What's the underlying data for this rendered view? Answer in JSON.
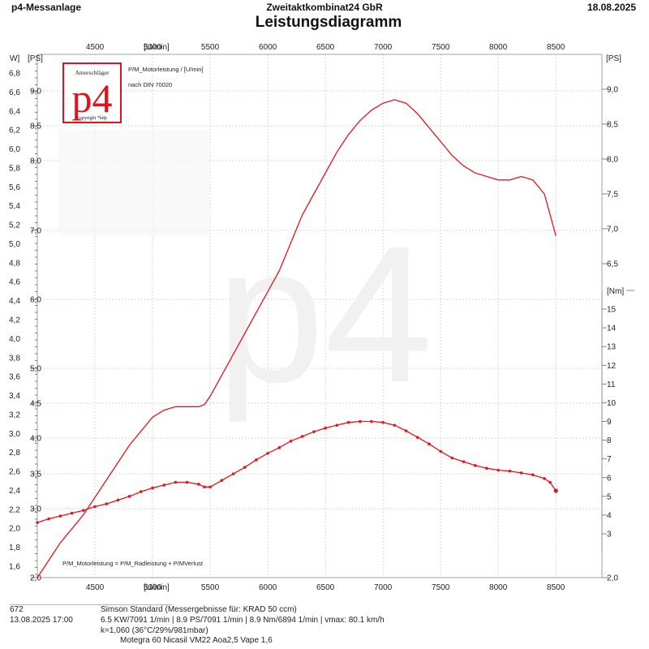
{
  "header": {
    "app_title": "p4-Messanlage",
    "company": "Zweitaktkombinat24 GbR",
    "date": "18.08.2025",
    "title": "Leistungsdiagramm"
  },
  "logo": {
    "top_text": "Amerschläger",
    "mark": "p4",
    "bottom_text": "copyright *bdp"
  },
  "watermark": "p4",
  "annotations": {
    "series_label": "P/M_Motorleistung / [U/min]",
    "norm": "nach DIN 70020",
    "formula": "P/M_Motorleistung = P/M_Radleistung + P/MVerlust"
  },
  "colors": {
    "series": "#e8141c",
    "logo": "#e0141c"
  },
  "chart_data": {
    "type": "line",
    "title": "Leistungsdiagramm",
    "x_unit_label": "[U/min]",
    "x_ticks": [
      "4500",
      "5000",
      "5500",
      "6000",
      "6500",
      "7000",
      "7500",
      "8000",
      "8500"
    ],
    "xlim": [
      4000,
      8900
    ],
    "axes": {
      "kw": {
        "unit_label": "W]",
        "ticks": [
          "1,6",
          "1,8",
          "2,0",
          "2,2",
          "2,4",
          "2,6",
          "2,8",
          "3,0",
          "3,2",
          "3,4",
          "3,6",
          "3,8",
          "4,0",
          "4,2",
          "4,4",
          "4,6",
          "4,8",
          "5,0",
          "5,2",
          "5,4",
          "5,6",
          "5,8",
          "6,0",
          "6,2",
          "6,4",
          "6,6",
          "6,8"
        ],
        "lim": [
          1.6,
          6.8
        ]
      },
      "ps_left": {
        "unit_label": "[PS]",
        "ticks": [
          "2,0",
          "3,0",
          "3,5",
          "4,0",
          "4,5",
          "5,0",
          "6,0",
          "7,0",
          "8,0",
          "8,5",
          "9,0"
        ],
        "lim": [
          2.0,
          9.0
        ]
      },
      "ps_right": {
        "unit_label": "[PS]",
        "ticks": [
          "2,0",
          "6,5",
          "7,0",
          "7,5",
          "8,0",
          "8,5",
          "9,0"
        ],
        "lim": [
          2.0,
          9.0
        ]
      },
      "nm": {
        "unit_label": "[Nm]",
        "ticks": [
          "3",
          "4",
          "5",
          "6",
          "7",
          "8",
          "9",
          "10",
          "11",
          "12",
          "13",
          "14",
          "15"
        ],
        "lim": [
          2,
          15
        ]
      }
    },
    "grid": true,
    "series": [
      {
        "name": "P/M_Motorleistung",
        "axis": "ps",
        "x": [
          4000,
          4100,
          4200,
          4300,
          4400,
          4500,
          4600,
          4700,
          4800,
          4900,
          5000,
          5050,
          5100,
          5200,
          5300,
          5400,
          5450,
          5500,
          5600,
          5700,
          5800,
          5900,
          6000,
          6100,
          6200,
          6300,
          6400,
          6500,
          6600,
          6700,
          6800,
          6900,
          7000,
          7100,
          7200,
          7300,
          7400,
          7500,
          7600,
          7700,
          7800,
          7900,
          8000,
          8100,
          8200,
          8300,
          8400,
          8450,
          8500
        ],
        "values": [
          2.0,
          2.25,
          2.5,
          2.7,
          2.9,
          3.15,
          3.4,
          3.65,
          3.9,
          4.1,
          4.3,
          4.35,
          4.4,
          4.45,
          4.45,
          4.45,
          4.48,
          4.6,
          4.9,
          5.2,
          5.5,
          5.8,
          6.1,
          6.4,
          6.8,
          7.2,
          7.5,
          7.8,
          8.1,
          8.35,
          8.55,
          8.7,
          8.8,
          8.85,
          8.8,
          8.65,
          8.45,
          8.25,
          8.05,
          7.9,
          7.8,
          7.75,
          7.7,
          7.7,
          7.75,
          7.7,
          7.5,
          7.2,
          6.9
        ]
      },
      {
        "name": "M_Motor",
        "axis": "nm",
        "x": [
          4000,
          4100,
          4200,
          4300,
          4400,
          4500,
          4600,
          4700,
          4800,
          4900,
          5000,
          5100,
          5200,
          5300,
          5400,
          5450,
          5500,
          5600,
          5700,
          5800,
          5900,
          6000,
          6100,
          6200,
          6300,
          6400,
          6500,
          6600,
          6700,
          6800,
          6900,
          7000,
          7100,
          7200,
          7300,
          7400,
          7500,
          7600,
          7700,
          7800,
          7900,
          8000,
          8100,
          8200,
          8300,
          8400,
          8450,
          8500
        ],
        "values": [
          3.6,
          3.8,
          3.95,
          4.1,
          4.25,
          4.45,
          4.6,
          4.8,
          5.0,
          5.25,
          5.45,
          5.6,
          5.75,
          5.75,
          5.65,
          5.5,
          5.5,
          5.85,
          6.2,
          6.55,
          6.95,
          7.3,
          7.6,
          7.95,
          8.2,
          8.45,
          8.65,
          8.8,
          8.95,
          9.0,
          9.0,
          8.95,
          8.8,
          8.5,
          8.15,
          7.8,
          7.4,
          7.05,
          6.85,
          6.65,
          6.5,
          6.4,
          6.35,
          6.25,
          6.15,
          5.95,
          5.75,
          5.3
        ],
        "markers": true
      }
    ]
  },
  "footer": {
    "run_no": "672",
    "run_date": "13.08.2025   17:00",
    "vehicle": "Simson Standard (Messergebnisse für: KRAD 50 ccm)",
    "results": "6.5 KW/7091 1/min  |  8.9 PS/7091 1/min  |  8.9 Nm/6894 1/min | vmax: 80.1 km/h",
    "correction": "k=1,060 (36°C/29%/981mbar)",
    "config": "Motegra 60 Nicasil VM22 Aoa2,5 Vape 1,6"
  }
}
